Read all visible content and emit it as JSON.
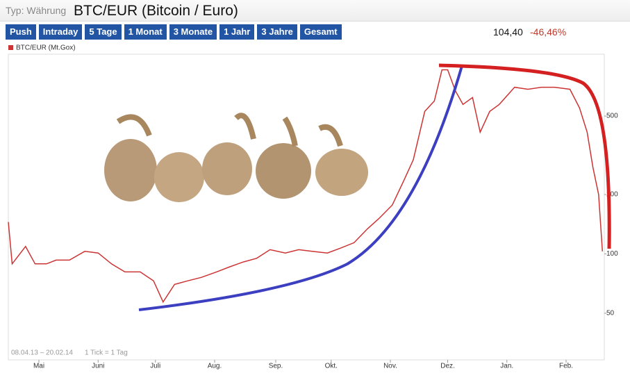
{
  "header": {
    "type_label": "Typ: Währung",
    "title": "BTC/EUR (Bitcoin / Euro)"
  },
  "buttons": [
    "Push",
    "Intraday",
    "5 Tage",
    "1 Monat",
    "3 Monate",
    "1 Jahr",
    "3 Jahre",
    "Gesamt"
  ],
  "quote": {
    "price": "104,40",
    "change": "-46,46%"
  },
  "chart_data": {
    "type": "line",
    "annotations": [
      "08.04.13 – 20.02.14",
      "1 Tick = 1 Tag"
    ],
    "x": [
      7,
      9,
      16,
      21,
      27,
      32,
      39,
      47,
      54,
      61,
      68,
      76,
      83,
      88,
      94,
      101,
      108,
      116,
      123,
      130,
      137,
      144,
      152,
      159,
      166,
      174,
      181,
      188,
      195,
      201,
      208,
      214,
      219,
      225,
      230,
      234,
      237,
      241,
      245,
      250,
      254,
      259,
      264,
      272,
      279,
      286,
      293,
      301,
      306,
      310,
      313,
      316,
      318
    ],
    "series": [
      {
        "name": "BTC/EUR (Mt.Gox)",
        "color": "#cc3333",
        "values": [
          145,
          89,
          109,
          89,
          89,
          93,
          93,
          103,
          101,
          89,
          81,
          81,
          73,
          57,
          70,
          73,
          76,
          81,
          86,
          91,
          95,
          105,
          101,
          105,
          103,
          101,
          107,
          114,
          134,
          151,
          177,
          235,
          300,
          528,
          596,
          858,
          858,
          672,
          573,
          621,
          414,
          528,
          573,
          700,
          684,
          700,
          700,
          684,
          550,
          414,
          276,
          200,
          103
        ]
      }
    ],
    "xlim": [
      7,
      319
    ],
    "xticks": [
      {
        "value": 23,
        "label": "Mai"
      },
      {
        "value": 54,
        "label": "Juni"
      },
      {
        "value": 84,
        "label": "Juli"
      },
      {
        "value": 115,
        "label": "Aug."
      },
      {
        "value": 147,
        "label": "Sep."
      },
      {
        "value": 176,
        "label": "Okt."
      },
      {
        "value": 207,
        "label": "Nov."
      },
      {
        "value": 237,
        "label": "Dez."
      },
      {
        "value": 268,
        "label": "Jan."
      },
      {
        "value": 299,
        "label": "Feb."
      }
    ],
    "ylim": [
      29,
      1030
    ],
    "yticks": [
      50,
      100,
      200,
      500
    ],
    "log_scale": true,
    "grid": false
  }
}
